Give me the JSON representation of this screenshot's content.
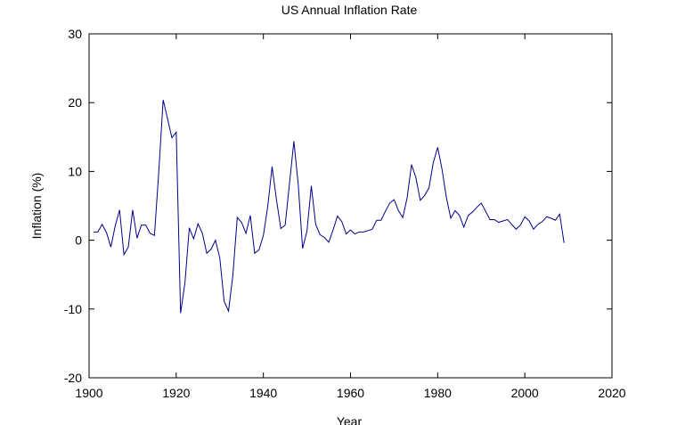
{
  "chart_data": {
    "type": "line",
    "title": "US Annual Inflation Rate",
    "xlabel": "Year",
    "ylabel": "Inflation (%)",
    "xlim": [
      1900,
      2020
    ],
    "ylim": [
      -20,
      30
    ],
    "xticks": [
      1900,
      1920,
      1940,
      1960,
      1980,
      2000,
      2020
    ],
    "yticks": [
      -20,
      -10,
      0,
      10,
      20,
      30
    ],
    "grid": false,
    "line_color": "#00008b",
    "series": [
      {
        "x": [
          1901,
          1902,
          1903,
          1904,
          1905,
          1906,
          1907,
          1908,
          1909,
          1910,
          1911,
          1912,
          1913,
          1914,
          1915,
          1916,
          1917,
          1918,
          1919,
          1920,
          1921,
          1922,
          1923,
          1924,
          1925,
          1926,
          1927,
          1928,
          1929,
          1930,
          1931,
          1932,
          1933,
          1934,
          1935,
          1936,
          1937,
          1938,
          1939,
          1940,
          1941,
          1942,
          1943,
          1944,
          1945,
          1946,
          1947,
          1948,
          1949,
          1950,
          1951,
          1952,
          1953,
          1954,
          1955,
          1956,
          1957,
          1958,
          1959,
          1960,
          1961,
          1962,
          1963,
          1964,
          1965,
          1966,
          1967,
          1968,
          1969,
          1970,
          1971,
          1972,
          1973,
          1974,
          1975,
          1976,
          1977,
          1978,
          1979,
          1980,
          1981,
          1982,
          1983,
          1984,
          1985,
          1986,
          1987,
          1988,
          1989,
          1990,
          1991,
          1992,
          1993,
          1994,
          1995,
          1996,
          1997,
          1998,
          1999,
          2000,
          2001,
          2002,
          2003,
          2004,
          2005,
          2006,
          2007,
          2008,
          2009
        ],
        "y": [
          1.2,
          1.2,
          2.3,
          1.1,
          -1.0,
          2.1,
          4.4,
          -2.1,
          -1.0,
          4.4,
          0.3,
          2.2,
          2.2,
          1.0,
          0.7,
          10.0,
          20.4,
          17.7,
          14.9,
          15.7,
          -10.6,
          -6.2,
          1.8,
          0.2,
          2.4,
          1.0,
          -1.9,
          -1.3,
          0.0,
          -2.6,
          -8.9,
          -10.3,
          -5.1,
          3.3,
          2.6,
          1.0,
          3.6,
          -1.9,
          -1.4,
          0.7,
          4.9,
          10.7,
          5.9,
          1.7,
          2.2,
          8.3,
          14.4,
          8.1,
          -1.2,
          1.3,
          7.9,
          2.3,
          0.8,
          0.4,
          -0.3,
          1.5,
          3.5,
          2.7,
          0.9,
          1.5,
          0.9,
          1.2,
          1.2,
          1.4,
          1.6,
          2.9,
          2.9,
          4.2,
          5.4,
          5.9,
          4.3,
          3.3,
          6.2,
          11.0,
          9.1,
          5.8,
          6.5,
          7.6,
          11.3,
          13.5,
          10.3,
          6.2,
          3.2,
          4.3,
          3.6,
          1.9,
          3.6,
          4.1,
          4.8,
          5.4,
          4.2,
          3.0,
          3.0,
          2.6,
          2.8,
          3.0,
          2.3,
          1.6,
          2.2,
          3.4,
          2.8,
          1.6,
          2.3,
          2.7,
          3.4,
          3.2,
          2.9,
          3.8,
          -0.4
        ]
      }
    ]
  }
}
